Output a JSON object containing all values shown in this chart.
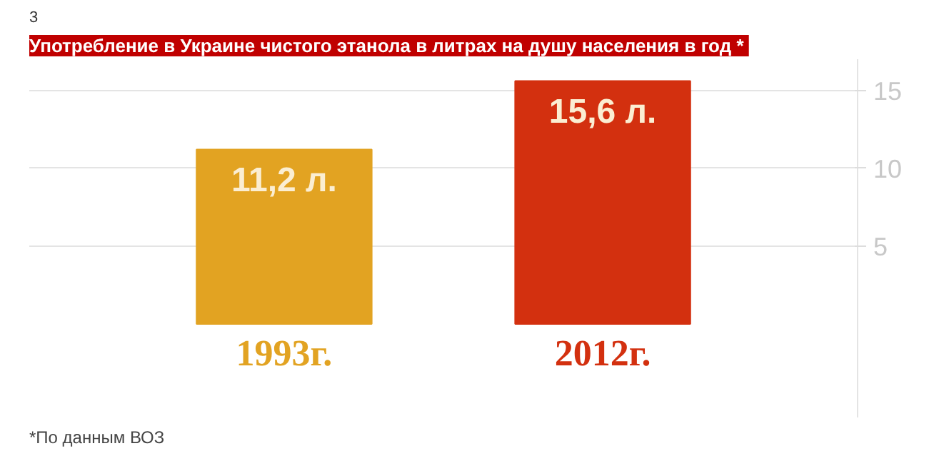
{
  "chart_data": {
    "type": "bar",
    "title": "Употребление в Украине  чистого этанола в литрах на душу населения в год *",
    "categories": [
      "1993г.",
      "2012г."
    ],
    "values": [
      11.2,
      15.6
    ],
    "colors": [
      "#e2a322",
      "#d3300f"
    ],
    "value_labels": [
      "11,2 л.",
      "15,6 л."
    ],
    "ylim": [
      -6,
      17
    ],
    "yticks": [
      5,
      10,
      15
    ],
    "grid": "y",
    "annotations": [
      "3",
      "*По данным ВОЗ"
    ]
  }
}
